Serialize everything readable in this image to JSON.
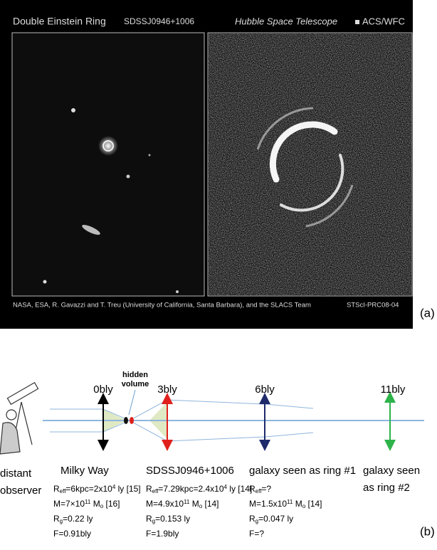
{
  "photo": {
    "title": "Double Einstein Ring",
    "target": "SDSSJ0946+1006",
    "telescope": "Hubble Space Telescope",
    "instrument": "ACS/WFC",
    "credit": "NASA, ESA, R. Gavazzi and T. Treu (University of California, Santa Barbara), and the SLACS Team",
    "release": "STScI-PRC08-04",
    "panel_label": "(a)"
  },
  "diagram": {
    "observer": [
      "distant",
      "observer"
    ],
    "hidden_volume": [
      "hidden",
      "volume"
    ],
    "distances": [
      "0bly",
      "3bly",
      "6bly",
      "11bly"
    ],
    "objects": [
      {
        "name": [
          "Milky Way"
        ],
        "lines": [
          [
            "R",
            {
              "sub": "eff"
            },
            "=6kpc=2x10",
            {
              "sup": "4"
            },
            " ly [15]"
          ],
          [
            "M=7×10",
            {
              "sup": "11"
            },
            " M",
            {
              "sub": "o"
            },
            " [16]"
          ],
          [
            "R",
            {
              "sub": "g"
            },
            "=0.22 ly"
          ],
          [
            "F=0.91bly"
          ]
        ]
      },
      {
        "name": [
          "SDSSJ0946+1006"
        ],
        "lines": [
          [
            "R",
            {
              "sub": "eff"
            },
            "=7.29kpc=2.4x10",
            {
              "sup": "4"
            },
            " ly [14]"
          ],
          [
            "M=4.9x10",
            {
              "sup": "11"
            },
            " M",
            {
              "sub": "o"
            },
            " [14]"
          ],
          [
            "R",
            {
              "sub": "g"
            },
            "=0.153 ly"
          ],
          [
            "F=1.9bly"
          ]
        ]
      },
      {
        "name": [
          "galaxy seen as ring #1"
        ],
        "lines": [
          [
            "R",
            {
              "sub": "eff"
            },
            "=?"
          ],
          [
            "M=1.5x10",
            {
              "sup": "11"
            },
            " M",
            {
              "sub": "o"
            },
            " [14]"
          ],
          [
            "R",
            {
              "sub": "g"
            },
            "=0.047 ly"
          ],
          [
            "F=?"
          ]
        ]
      },
      {
        "name": [
          "galaxy seen",
          "as ring #2"
        ],
        "lines": []
      }
    ],
    "panel_label": "(b)"
  }
}
